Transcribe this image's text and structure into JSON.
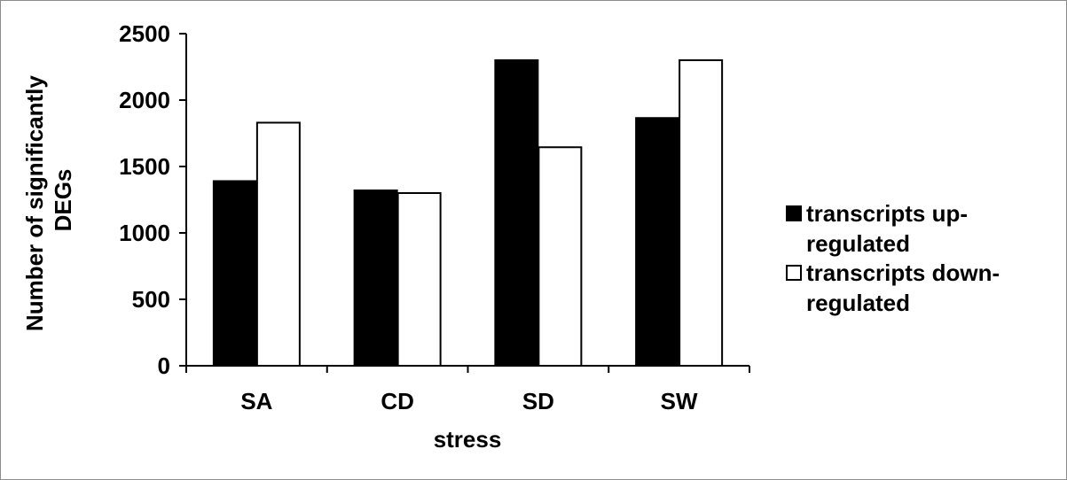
{
  "chart_data": {
    "type": "bar",
    "categories": [
      "SA",
      "CD",
      "SD",
      "SW"
    ],
    "series": [
      {
        "name": "transcripts up-regulated",
        "name_lines": [
          "transcripts up-",
          "regulated"
        ],
        "values": [
          1390,
          1320,
          2300,
          1865
        ],
        "color": "#000000"
      },
      {
        "name": "transcripts down-regulated",
        "name_lines": [
          "transcripts down-",
          "regulated"
        ],
        "values": [
          1830,
          1300,
          1645,
          2300
        ],
        "color": "#ffffff"
      }
    ],
    "ylabel_lines": [
      "Number of significantly",
      "DEGs"
    ],
    "xlabel": "stress",
    "ylim": [
      0,
      2500
    ],
    "yticks": [
      "0",
      "500",
      "1000",
      "1500",
      "2000",
      "2500"
    ],
    "grid": false,
    "legend_position": "right"
  }
}
